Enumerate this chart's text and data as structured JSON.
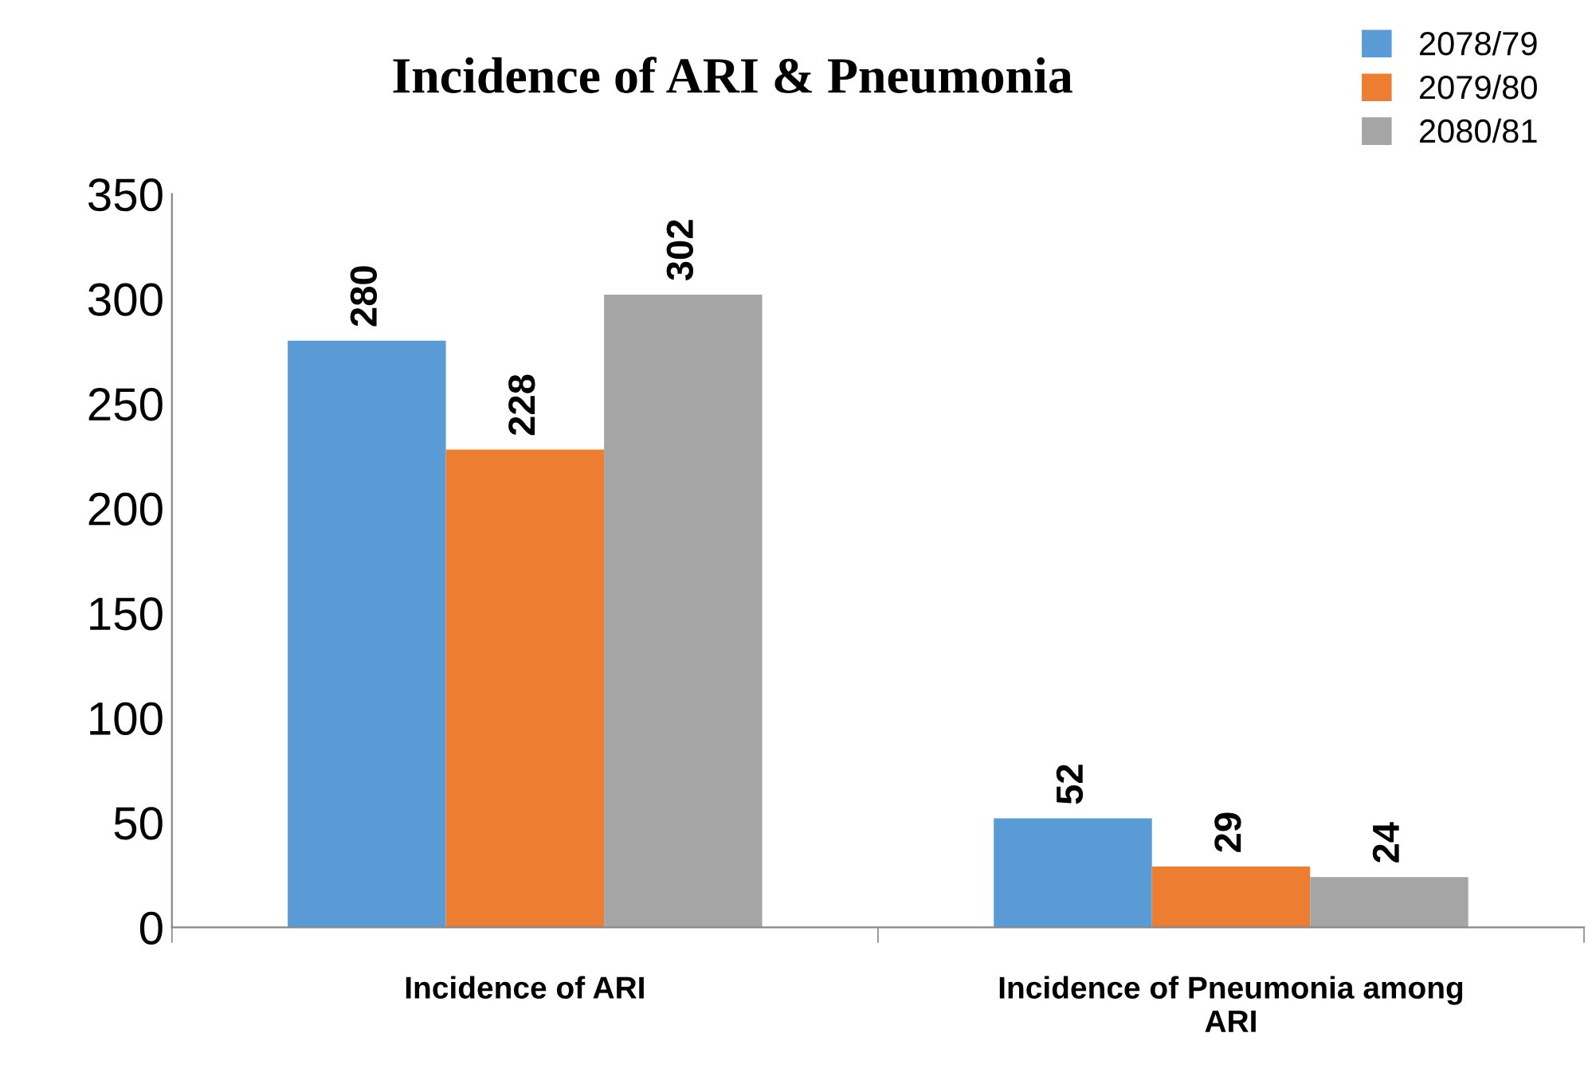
{
  "chart_data": {
    "type": "bar",
    "title": "Incidence of ARI & Pneumonia",
    "categories": [
      "Incidence of ARI",
      "Incidence of Pneumonia among\nARI"
    ],
    "series": [
      {
        "name": "2078/79",
        "color": "#5b9bd5",
        "values": [
          280,
          52
        ]
      },
      {
        "name": "2079/80",
        "color": "#ed7d31",
        "values": [
          228,
          29
        ]
      },
      {
        "name": "2080/81",
        "color": "#a5a5a5",
        "values": [
          302,
          24
        ]
      }
    ],
    "ylim": [
      0,
      350
    ],
    "yticks": [
      0,
      50,
      100,
      150,
      200,
      250,
      300,
      350
    ],
    "data_labels": true,
    "grid": false,
    "legend": "top right"
  }
}
